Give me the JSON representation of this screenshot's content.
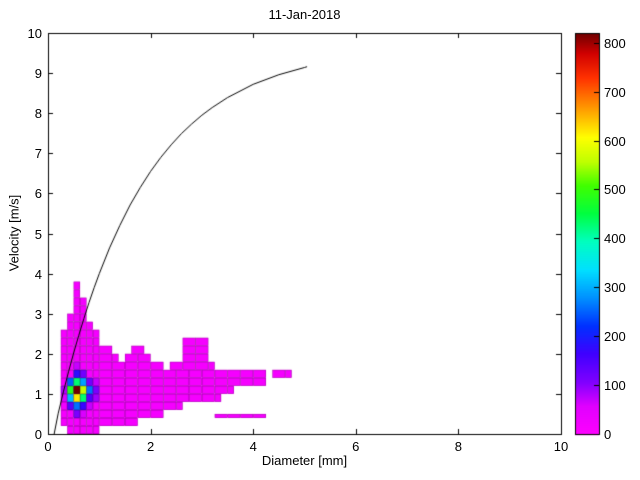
{
  "chart_data": {
    "type": "heatmap",
    "title": "11-Jan-2018",
    "xlabel": "Diameter [mm]",
    "ylabel": "Velocity [m/s]",
    "xlim": [
      0,
      10
    ],
    "ylim": [
      0,
      10
    ],
    "xticks": [
      0,
      2,
      4,
      6,
      8,
      10
    ],
    "yticks": [
      0,
      1,
      2,
      3,
      4,
      5,
      6,
      7,
      8,
      9,
      10
    ],
    "grid": false,
    "colorbar": {
      "min": 0,
      "max": 820,
      "ticks": [
        0,
        100,
        200,
        300,
        400,
        500,
        600,
        700,
        800
      ],
      "position": "right"
    },
    "colormap_stops": [
      [
        0.0,
        "#ff00ff"
      ],
      [
        0.07,
        "#e000ff"
      ],
      [
        0.13,
        "#8000ff"
      ],
      [
        0.2,
        "#4000ff"
      ],
      [
        0.27,
        "#0030ff"
      ],
      [
        0.34,
        "#0090ff"
      ],
      [
        0.41,
        "#00e0ff"
      ],
      [
        0.48,
        "#00ffc0"
      ],
      [
        0.55,
        "#00ff40"
      ],
      [
        0.62,
        "#40ff00"
      ],
      [
        0.68,
        "#c0ff00"
      ],
      [
        0.74,
        "#ffff00"
      ],
      [
        0.82,
        "#ff9000"
      ],
      [
        0.89,
        "#ff3000"
      ],
      [
        0.95,
        "#d00000"
      ],
      [
        1.0,
        "#700000"
      ]
    ],
    "heatmap": {
      "default_value": 18,
      "rows": [
        {
          "y": 0.0,
          "h": 0.2,
          "spans": [
            [
              0.375,
              1.0
            ]
          ]
        },
        {
          "y": 0.2,
          "h": 0.2,
          "spans": [
            [
              0.25,
              1.75
            ]
          ]
        },
        {
          "y": 0.4,
          "h": 0.2,
          "spans": [
            [
              0.25,
              2.25
            ]
          ]
        },
        {
          "y": 0.4,
          "h": 0.1,
          "spans": [
            [
              3.25,
              4.25
            ]
          ]
        },
        {
          "y": 0.6,
          "h": 0.2,
          "spans": [
            [
              0.25,
              2.625
            ]
          ]
        },
        {
          "y": 0.8,
          "h": 0.2,
          "spans": [
            [
              0.25,
              3.375
            ]
          ]
        },
        {
          "y": 1.0,
          "h": 0.2,
          "spans": [
            [
              0.25,
              3.625
            ]
          ]
        },
        {
          "y": 1.2,
          "h": 0.2,
          "spans": [
            [
              0.25,
              4.25
            ]
          ]
        },
        {
          "y": 1.4,
          "h": 0.2,
          "spans": [
            [
              0.25,
              4.25
            ],
            [
              4.375,
              4.75
            ]
          ]
        },
        {
          "y": 1.6,
          "h": 0.2,
          "spans": [
            [
              0.25,
              2.25
            ],
            [
              2.375,
              3.25
            ]
          ]
        },
        {
          "y": 1.8,
          "h": 0.2,
          "spans": [
            [
              0.25,
              1.375
            ],
            [
              1.5,
              2.0
            ],
            [
              2.625,
              3.125
            ]
          ]
        },
        {
          "y": 2.0,
          "h": 0.2,
          "spans": [
            [
              0.25,
              1.25
            ],
            [
              1.625,
              1.875
            ],
            [
              2.625,
              3.125
            ]
          ]
        },
        {
          "y": 2.2,
          "h": 0.2,
          "spans": [
            [
              0.25,
              1.0
            ],
            [
              2.625,
              3.125
            ]
          ]
        },
        {
          "y": 2.4,
          "h": 0.2,
          "spans": [
            [
              0.25,
              1.0
            ]
          ]
        },
        {
          "y": 2.6,
          "h": 0.2,
          "spans": [
            [
              0.375,
              0.875
            ]
          ]
        },
        {
          "y": 2.8,
          "h": 0.2,
          "spans": [
            [
              0.375,
              0.75
            ]
          ]
        },
        {
          "y": 3.0,
          "h": 0.2,
          "spans": [
            [
              0.5,
              0.75
            ]
          ]
        },
        {
          "y": 3.2,
          "h": 0.2,
          "spans": [
            [
              0.5,
              0.75
            ]
          ]
        },
        {
          "y": 3.4,
          "h": 0.2,
          "spans": [
            [
              0.5,
              0.625
            ]
          ]
        },
        {
          "y": 3.6,
          "h": 0.2,
          "spans": [
            [
              0.5,
              0.625
            ]
          ]
        }
      ],
      "hot_cells": [
        [
          0.5,
          0.4,
          0.125,
          0.2,
          110
        ],
        [
          0.625,
          0.4,
          0.125,
          0.2,
          60
        ],
        [
          0.375,
          0.6,
          0.125,
          0.2,
          140
        ],
        [
          0.5,
          0.6,
          0.125,
          0.2,
          260
        ],
        [
          0.625,
          0.6,
          0.125,
          0.2,
          170
        ],
        [
          0.75,
          0.6,
          0.125,
          0.2,
          70
        ],
        [
          0.25,
          0.8,
          0.125,
          0.2,
          60
        ],
        [
          0.375,
          0.8,
          0.125,
          0.2,
          310
        ],
        [
          0.5,
          0.8,
          0.125,
          0.2,
          620
        ],
        [
          0.625,
          0.8,
          0.125,
          0.2,
          430
        ],
        [
          0.75,
          0.8,
          0.125,
          0.2,
          150
        ],
        [
          0.875,
          0.8,
          0.125,
          0.2,
          90
        ],
        [
          0.25,
          1.0,
          0.125,
          0.2,
          80
        ],
        [
          0.375,
          1.0,
          0.125,
          0.2,
          480
        ],
        [
          0.5,
          1.0,
          0.125,
          0.2,
          820
        ],
        [
          0.625,
          1.0,
          0.125,
          0.2,
          560
        ],
        [
          0.75,
          1.0,
          0.125,
          0.2,
          260
        ],
        [
          0.875,
          1.0,
          0.125,
          0.2,
          110
        ],
        [
          0.375,
          1.2,
          0.125,
          0.2,
          250
        ],
        [
          0.5,
          1.2,
          0.125,
          0.2,
          430
        ],
        [
          0.625,
          1.2,
          0.125,
          0.2,
          290
        ],
        [
          0.75,
          1.2,
          0.125,
          0.2,
          120
        ],
        [
          0.875,
          1.2,
          0.125,
          0.2,
          70
        ],
        [
          0.5,
          1.4,
          0.125,
          0.2,
          180
        ],
        [
          0.625,
          1.4,
          0.125,
          0.2,
          120
        ],
        [
          0.5,
          1.6,
          0.125,
          0.2,
          70
        ]
      ]
    },
    "curve": {
      "label": "terminal-velocity-curve",
      "color": "#000000",
      "points": [
        [
          0.12,
          0.0
        ],
        [
          0.2,
          0.52
        ],
        [
          0.3,
          1.05
        ],
        [
          0.4,
          1.55
        ],
        [
          0.5,
          2.02
        ],
        [
          0.6,
          2.46
        ],
        [
          0.7,
          2.88
        ],
        [
          0.8,
          3.28
        ],
        [
          0.9,
          3.65
        ],
        [
          1.0,
          4.0
        ],
        [
          1.2,
          4.64
        ],
        [
          1.4,
          5.2
        ],
        [
          1.6,
          5.71
        ],
        [
          1.8,
          6.15
        ],
        [
          2.0,
          6.55
        ],
        [
          2.2,
          6.9
        ],
        [
          2.4,
          7.21
        ],
        [
          2.6,
          7.49
        ],
        [
          2.8,
          7.73
        ],
        [
          3.0,
          7.95
        ],
        [
          3.2,
          8.14
        ],
        [
          3.5,
          8.39
        ],
        [
          4.0,
          8.72
        ],
        [
          4.5,
          8.96
        ],
        [
          5.0,
          9.14
        ],
        [
          5.05,
          9.16
        ]
      ]
    }
  }
}
